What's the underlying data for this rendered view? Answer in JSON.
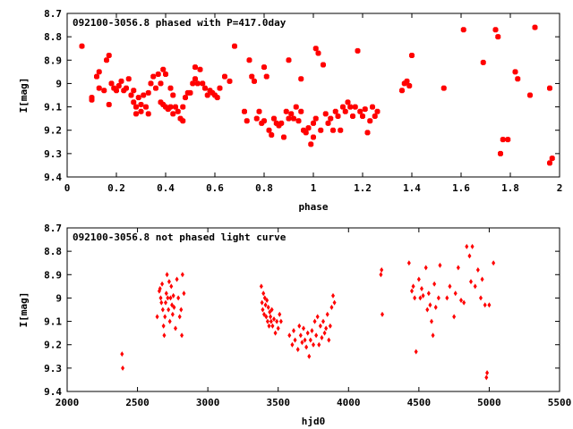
{
  "chart_data": [
    {
      "type": "scatter",
      "title": "092100-3056.8 phased with P=417.0day",
      "xlabel": "phase",
      "ylabel": "I[mag]",
      "xlim": [
        0,
        2
      ],
      "ylim": [
        9.4,
        8.7
      ],
      "y_inverted": true,
      "grid": false,
      "color": "#ff0000",
      "xticks": [
        "0",
        "0.2",
        "0.4",
        "0.6",
        "0.8",
        "1",
        "1.2",
        "1.4",
        "1.6",
        "1.8",
        "2"
      ],
      "yticks": [
        "8.7",
        "8.8",
        "8.9",
        "9",
        "9.1",
        "9.2",
        "9.3",
        "9.4"
      ],
      "points": [
        [
          0.06,
          8.84
        ],
        [
          0.1,
          9.06
        ],
        [
          0.1,
          9.07
        ],
        [
          0.12,
          8.97
        ],
        [
          0.13,
          9.02
        ],
        [
          0.13,
          8.95
        ],
        [
          0.15,
          9.03
        ],
        [
          0.16,
          8.9
        ],
        [
          0.17,
          8.88
        ],
        [
          0.18,
          9.0
        ],
        [
          0.17,
          9.09
        ],
        [
          0.19,
          9.02
        ],
        [
          0.2,
          9.03
        ],
        [
          0.21,
          9.01
        ],
        [
          0.22,
          8.99
        ],
        [
          0.23,
          9.03
        ],
        [
          0.24,
          9.02
        ],
        [
          0.25,
          8.98
        ],
        [
          0.26,
          9.05
        ],
        [
          0.27,
          9.03
        ],
        [
          0.27,
          9.08
        ],
        [
          0.28,
          9.1
        ],
        [
          0.28,
          9.13
        ],
        [
          0.29,
          9.06
        ],
        [
          0.3,
          9.09
        ],
        [
          0.3,
          9.12
        ],
        [
          0.31,
          9.05
        ],
        [
          0.32,
          9.1
        ],
        [
          0.33,
          9.04
        ],
        [
          0.33,
          9.13
        ],
        [
          0.34,
          9.0
        ],
        [
          0.35,
          8.97
        ],
        [
          0.36,
          9.02
        ],
        [
          0.37,
          8.96
        ],
        [
          0.38,
          9.0
        ],
        [
          0.38,
          9.08
        ],
        [
          0.39,
          8.94
        ],
        [
          0.39,
          9.09
        ],
        [
          0.4,
          9.1
        ],
        [
          0.4,
          8.96
        ],
        [
          0.41,
          9.11
        ],
        [
          0.42,
          9.1
        ],
        [
          0.42,
          9.02
        ],
        [
          0.43,
          9.05
        ],
        [
          0.43,
          9.13
        ],
        [
          0.44,
          9.1
        ],
        [
          0.45,
          9.12
        ],
        [
          0.46,
          9.15
        ],
        [
          0.47,
          9.1
        ],
        [
          0.47,
          9.16
        ],
        [
          0.48,
          9.06
        ],
        [
          0.49,
          9.04
        ],
        [
          0.5,
          9.04
        ],
        [
          0.51,
          9.0
        ],
        [
          0.52,
          8.98
        ],
        [
          0.52,
          8.93
        ],
        [
          0.53,
          9.0
        ],
        [
          0.54,
          8.94
        ],
        [
          0.55,
          9.0
        ],
        [
          0.56,
          9.02
        ],
        [
          0.57,
          9.05
        ],
        [
          0.58,
          9.03
        ],
        [
          0.59,
          9.04
        ],
        [
          0.6,
          9.05
        ],
        [
          0.61,
          9.06
        ],
        [
          0.62,
          9.02
        ],
        [
          0.64,
          8.97
        ],
        [
          0.66,
          8.99
        ],
        [
          0.68,
          8.84
        ],
        [
          0.72,
          9.12
        ],
        [
          0.73,
          9.16
        ],
        [
          0.74,
          8.9
        ],
        [
          0.75,
          8.97
        ],
        [
          0.76,
          8.99
        ],
        [
          0.77,
          9.15
        ],
        [
          0.78,
          9.12
        ],
        [
          0.79,
          9.17
        ],
        [
          0.8,
          9.16
        ],
        [
          0.8,
          8.93
        ],
        [
          0.81,
          8.97
        ],
        [
          0.82,
          9.2
        ],
        [
          0.83,
          9.22
        ],
        [
          0.84,
          9.15
        ],
        [
          0.85,
          9.17
        ],
        [
          0.86,
          9.18
        ],
        [
          0.87,
          9.17
        ],
        [
          0.88,
          9.23
        ],
        [
          0.89,
          9.12
        ],
        [
          0.9,
          8.9
        ],
        [
          0.9,
          9.15
        ],
        [
          0.91,
          9.13
        ],
        [
          0.92,
          9.15
        ],
        [
          0.93,
          9.1
        ],
        [
          0.94,
          9.16
        ],
        [
          0.95,
          8.98
        ],
        [
          0.95,
          9.12
        ],
        [
          0.96,
          9.2
        ],
        [
          0.97,
          9.21
        ],
        [
          0.98,
          9.19
        ],
        [
          0.99,
          9.26
        ],
        [
          1.0,
          9.23
        ],
        [
          1.0,
          9.17
        ],
        [
          1.01,
          8.85
        ],
        [
          1.01,
          9.15
        ],
        [
          1.02,
          8.87
        ],
        [
          1.03,
          9.2
        ],
        [
          1.04,
          8.92
        ],
        [
          1.05,
          9.13
        ],
        [
          1.06,
          9.17
        ],
        [
          1.07,
          9.15
        ],
        [
          1.08,
          9.2
        ],
        [
          1.09,
          9.12
        ],
        [
          1.1,
          9.14
        ],
        [
          1.11,
          9.2
        ],
        [
          1.12,
          9.1
        ],
        [
          1.13,
          9.12
        ],
        [
          1.14,
          9.08
        ],
        [
          1.15,
          9.1
        ],
        [
          1.16,
          9.14
        ],
        [
          1.17,
          9.1
        ],
        [
          1.18,
          8.86
        ],
        [
          1.19,
          9.12
        ],
        [
          1.2,
          9.14
        ],
        [
          1.21,
          9.11
        ],
        [
          1.22,
          9.21
        ],
        [
          1.23,
          9.16
        ],
        [
          1.24,
          9.1
        ],
        [
          1.25,
          9.14
        ],
        [
          1.26,
          9.12
        ],
        [
          1.36,
          9.03
        ],
        [
          1.37,
          9.0
        ],
        [
          1.38,
          8.99
        ],
        [
          1.39,
          9.01
        ],
        [
          1.4,
          8.88
        ],
        [
          1.53,
          9.02
        ],
        [
          1.61,
          8.77
        ],
        [
          1.69,
          8.91
        ],
        [
          1.74,
          8.77
        ],
        [
          1.75,
          8.8
        ],
        [
          1.76,
          9.3
        ],
        [
          1.77,
          9.24
        ],
        [
          1.79,
          9.24
        ],
        [
          1.82,
          8.95
        ],
        [
          1.83,
          8.98
        ],
        [
          1.88,
          9.05
        ],
        [
          1.9,
          8.76
        ],
        [
          1.96,
          9.02
        ],
        [
          1.96,
          9.34
        ],
        [
          1.97,
          9.32
        ]
      ]
    },
    {
      "type": "scatter",
      "title": "092100-3056.8 not phased light curve",
      "xlabel": "hjd0",
      "ylabel": "I[mag]",
      "xlim": [
        2000,
        5500
      ],
      "ylim": [
        9.4,
        8.7
      ],
      "y_inverted": true,
      "grid": false,
      "color": "#ff0000",
      "xticks": [
        "2000",
        "2500",
        "3000",
        "3500",
        "4000",
        "4500",
        "5000",
        "5500"
      ],
      "yticks": [
        "8.7",
        "8.8",
        "8.9",
        "9",
        "9.1",
        "9.2",
        "9.3",
        "9.4"
      ],
      "points": [
        [
          2390,
          9.24
        ],
        [
          2395,
          9.3
        ],
        [
          2640,
          9.08
        ],
        [
          2655,
          8.97
        ],
        [
          2660,
          8.96
        ],
        [
          2665,
          9.0
        ],
        [
          2670,
          9.02
        ],
        [
          2675,
          8.94
        ],
        [
          2680,
          9.05
        ],
        [
          2685,
          9.12
        ],
        [
          2690,
          9.16
        ],
        [
          2695,
          9.08
        ],
        [
          2700,
          9.02
        ],
        [
          2705,
          8.98
        ],
        [
          2710,
          8.9
        ],
        [
          2715,
          9.0
        ],
        [
          2720,
          9.05
        ],
        [
          2725,
          8.93
        ],
        [
          2730,
          9.1
        ],
        [
          2735,
          9.0
        ],
        [
          2740,
          8.95
        ],
        [
          2745,
          9.03
        ],
        [
          2750,
          9.07
        ],
        [
          2755,
          8.99
        ],
        [
          2760,
          9.04
        ],
        [
          2770,
          9.13
        ],
        [
          2780,
          8.92
        ],
        [
          2790,
          9.0
        ],
        [
          2800,
          9.08
        ],
        [
          2810,
          9.05
        ],
        [
          2815,
          9.16
        ],
        [
          2820,
          8.9
        ],
        [
          2830,
          8.98
        ],
        [
          3380,
          8.95
        ],
        [
          3385,
          9.02
        ],
        [
          3390,
          9.05
        ],
        [
          3395,
          8.98
        ],
        [
          3400,
          9.07
        ],
        [
          3405,
          9.0
        ],
        [
          3410,
          9.03
        ],
        [
          3415,
          9.08
        ],
        [
          3420,
          9.01
        ],
        [
          3425,
          9.1
        ],
        [
          3430,
          9.04
        ],
        [
          3435,
          9.12
        ],
        [
          3440,
          9.06
        ],
        [
          3445,
          9.08
        ],
        [
          3450,
          9.1
        ],
        [
          3455,
          9.05
        ],
        [
          3460,
          9.12
        ],
        [
          3470,
          9.09
        ],
        [
          3480,
          9.15
        ],
        [
          3490,
          9.1
        ],
        [
          3500,
          9.13
        ],
        [
          3510,
          9.07
        ],
        [
          3520,
          9.1
        ],
        [
          3580,
          9.16
        ],
        [
          3600,
          9.2
        ],
        [
          3610,
          9.14
        ],
        [
          3620,
          9.18
        ],
        [
          3640,
          9.22
        ],
        [
          3650,
          9.12
        ],
        [
          3660,
          9.16
        ],
        [
          3670,
          9.19
        ],
        [
          3680,
          9.13
        ],
        [
          3690,
          9.18
        ],
        [
          3700,
          9.21
        ],
        [
          3710,
          9.15
        ],
        [
          3720,
          9.25
        ],
        [
          3730,
          9.18
        ],
        [
          3740,
          9.14
        ],
        [
          3750,
          9.2
        ],
        [
          3760,
          9.1
        ],
        [
          3770,
          9.16
        ],
        [
          3780,
          9.08
        ],
        [
          3790,
          9.2
        ],
        [
          3800,
          9.12
        ],
        [
          3810,
          9.17
        ],
        [
          3820,
          9.1
        ],
        [
          3830,
          9.15
        ],
        [
          3840,
          9.13
        ],
        [
          3850,
          9.07
        ],
        [
          3860,
          9.18
        ],
        [
          3870,
          9.12
        ],
        [
          3880,
          9.04
        ],
        [
          3890,
          8.99
        ],
        [
          3900,
          9.02
        ],
        [
          4230,
          8.9
        ],
        [
          4235,
          8.88
        ],
        [
          4240,
          9.07
        ],
        [
          4430,
          8.85
        ],
        [
          4450,
          8.97
        ],
        [
          4460,
          8.95
        ],
        [
          4470,
          9.0
        ],
        [
          4480,
          9.23
        ],
        [
          4500,
          8.92
        ],
        [
          4510,
          9.0
        ],
        [
          4520,
          8.96
        ],
        [
          4530,
          8.99
        ],
        [
          4550,
          8.87
        ],
        [
          4560,
          9.05
        ],
        [
          4570,
          8.98
        ],
        [
          4580,
          9.03
        ],
        [
          4590,
          9.1
        ],
        [
          4600,
          9.16
        ],
        [
          4610,
          8.94
        ],
        [
          4620,
          9.04
        ],
        [
          4640,
          9.0
        ],
        [
          4650,
          8.86
        ],
        [
          4700,
          9.0
        ],
        [
          4720,
          8.95
        ],
        [
          4750,
          9.08
        ],
        [
          4760,
          8.98
        ],
        [
          4780,
          8.87
        ],
        [
          4800,
          9.01
        ],
        [
          4820,
          9.02
        ],
        [
          4840,
          8.78
        ],
        [
          4860,
          8.82
        ],
        [
          4870,
          8.93
        ],
        [
          4880,
          8.78
        ],
        [
          4900,
          8.95
        ],
        [
          4920,
          8.88
        ],
        [
          4940,
          9.0
        ],
        [
          4950,
          8.92
        ],
        [
          4970,
          9.03
        ],
        [
          4980,
          9.34
        ],
        [
          4985,
          9.32
        ],
        [
          5000,
          9.03
        ],
        [
          5030,
          8.85
        ]
      ]
    }
  ]
}
